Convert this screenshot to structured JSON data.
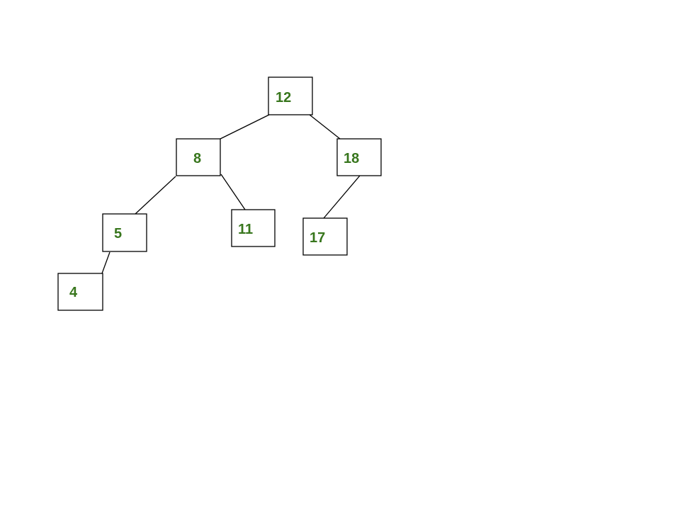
{
  "tree": {
    "colors": {
      "label": "#38761d",
      "stroke": "#000000"
    },
    "nodes": [
      {
        "id": "n12",
        "value": "12"
      },
      {
        "id": "n8",
        "value": "8"
      },
      {
        "id": "n18",
        "value": "18"
      },
      {
        "id": "n5",
        "value": "5"
      },
      {
        "id": "n11",
        "value": "11"
      },
      {
        "id": "n17",
        "value": "17"
      },
      {
        "id": "n4",
        "value": "4"
      }
    ],
    "edges": [
      {
        "from": "12",
        "to": "8"
      },
      {
        "from": "12",
        "to": "18"
      },
      {
        "from": "8",
        "to": "5"
      },
      {
        "from": "8",
        "to": "11"
      },
      {
        "from": "18",
        "to": "17"
      },
      {
        "from": "5",
        "to": "4"
      }
    ]
  }
}
